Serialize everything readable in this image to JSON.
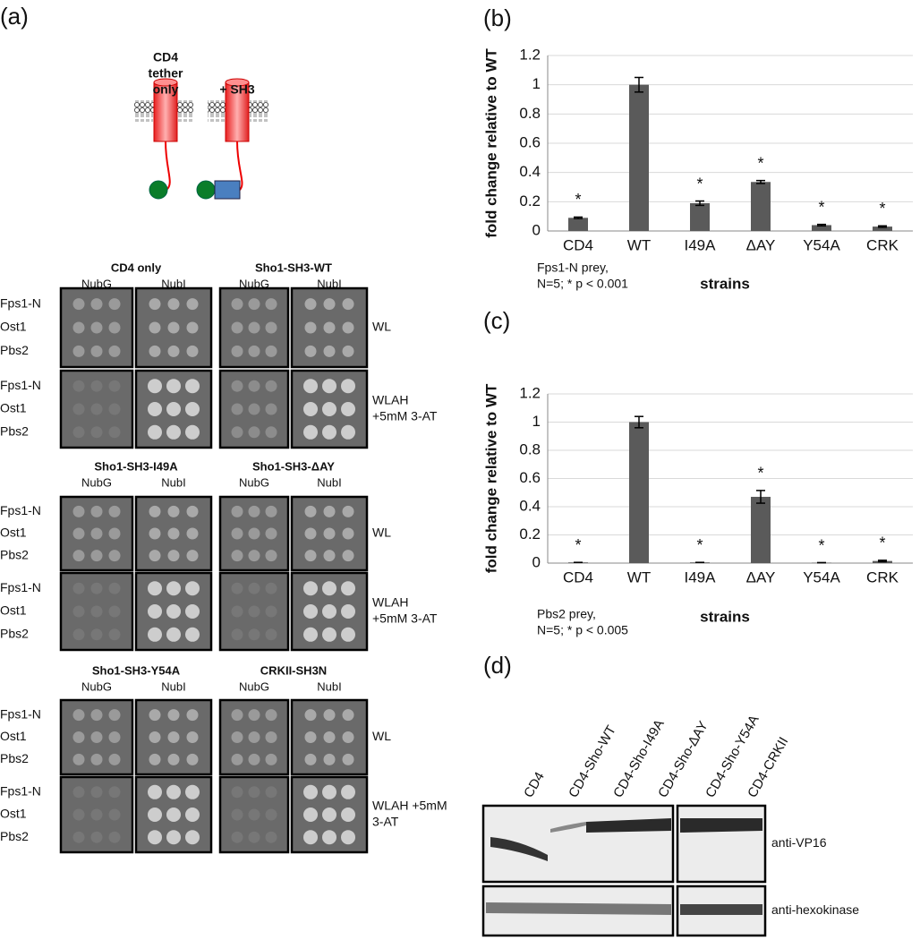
{
  "panel_a": {
    "label": "(a)",
    "diagram": {
      "tether": [
        "CD4",
        "tether",
        "only"
      ],
      "sh3": "+ SH3"
    },
    "groups": [
      {
        "constructs": [
          "CD4 only",
          "Sho1-SH3-WT"
        ],
        "media": [
          [
            "NubG",
            "NubI"
          ],
          [
            "NubG",
            "NubI"
          ]
        ],
        "rows": [
          {
            "strains": [
              "Fps1-N",
              "Ost1",
              "Pbs2"
            ],
            "condition": [
              "WL"
            ]
          },
          {
            "strains": [
              "Fps1-N",
              "Ost1",
              "Pbs2"
            ],
            "condition": [
              "WLAH",
              "+5mM 3-AT"
            ]
          }
        ]
      },
      {
        "constructs": [
          "Sho1-SH3-I49A",
          "Sho1-SH3-ΔAY"
        ],
        "media": [
          [
            "NubG",
            "NubI"
          ],
          [
            "NubG",
            "NubI"
          ]
        ],
        "rows": [
          {
            "strains": [
              "Fps1-N",
              "Ost1",
              "Pbs2"
            ],
            "condition": [
              "WL"
            ]
          },
          {
            "strains": [
              "Fps1-N",
              "Ost1",
              "Pbs2"
            ],
            "condition": [
              "WLAH",
              "+5mM 3-AT"
            ]
          }
        ]
      },
      {
        "constructs": [
          "Sho1-SH3-Y54A",
          "CRKII-SH3N"
        ],
        "media": [
          [
            "NubG",
            "NubI"
          ],
          [
            "NubG",
            "NubI"
          ]
        ],
        "rows": [
          {
            "strains": [
              "Fps1-N",
              "Ost1",
              "Pbs2"
            ],
            "condition": [
              "WL"
            ]
          },
          {
            "strains": [
              "Fps1-N",
              "Ost1",
              "Pbs2"
            ],
            "condition": [
              "WLAH +5mM",
              "3-AT"
            ]
          }
        ]
      }
    ]
  },
  "chart_data": [
    {
      "type": "bar",
      "panel_label": "(b)",
      "ylabel": "fold change relative to WT",
      "xlabel": "strains",
      "annotation": [
        "Fps1-N prey,",
        "N=5; * p < 0.001"
      ],
      "categories": [
        "CD4",
        "WT",
        "I49A",
        "ΔAY",
        "Y54A",
        "CRK"
      ],
      "values": [
        0.09,
        1.0,
        0.19,
        0.335,
        0.04,
        0.03
      ],
      "errors": [
        0.005,
        0.05,
        0.015,
        0.01,
        0.005,
        0.005
      ],
      "significance": [
        "*",
        null,
        "*",
        "*",
        "*",
        "*"
      ],
      "color": "#5a5a5a",
      "ylim": [
        0,
        1.2
      ],
      "yticks": [
        0,
        0.2,
        0.4,
        0.6,
        0.8,
        1,
        1.2
      ],
      "grid": true
    },
    {
      "type": "bar",
      "panel_label": "(c)",
      "ylabel": "fold change relative to WT",
      "xlabel": "strains",
      "annotation": [
        "Pbs2 prey,",
        "N=5; * p < 0.005"
      ],
      "categories": [
        "CD4",
        "WT",
        "I49A",
        "ΔAY",
        "Y54A",
        "CRK"
      ],
      "values": [
        0.005,
        1.0,
        0.005,
        0.47,
        0.003,
        0.015
      ],
      "errors": [
        0,
        0.04,
        0,
        0.045,
        0,
        0.005
      ],
      "significance": [
        "*",
        null,
        "*",
        "*",
        "*",
        "*"
      ],
      "color": "#5a5a5a",
      "ylim": [
        0,
        1.2
      ],
      "yticks": [
        0,
        0.2,
        0.4,
        0.6,
        0.8,
        1,
        1.2
      ],
      "grid": true
    }
  ],
  "panel_d": {
    "label": "(d)",
    "lanes": [
      "CD4",
      "CD4-Sho-WT",
      "CD4-Sho-I49A",
      "CD4-Sho-ΔAY",
      "CD4-Sho-Y54A",
      "CD4-CRKII"
    ],
    "blots": [
      "anti-VP16",
      "anti-hexokinase"
    ]
  }
}
